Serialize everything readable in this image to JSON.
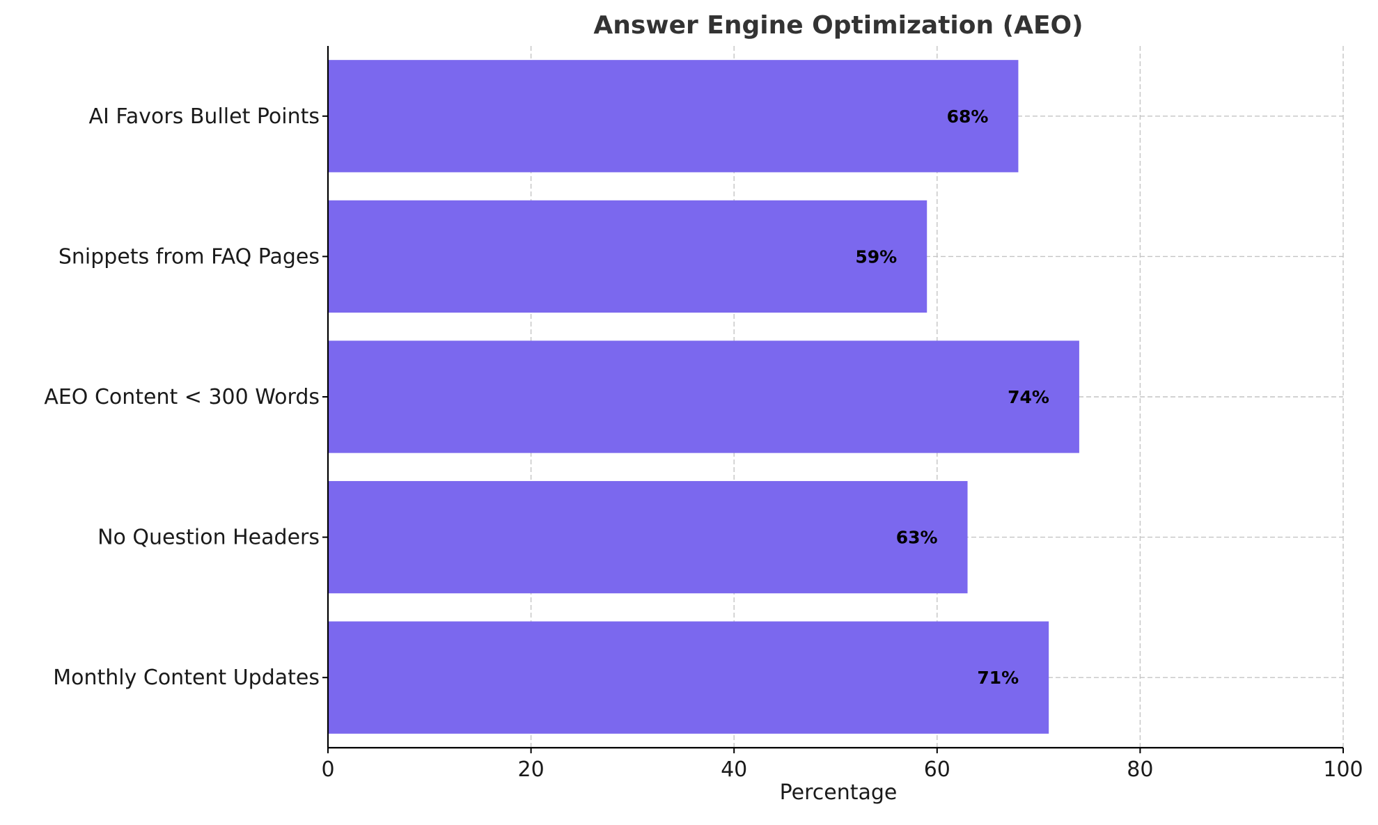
{
  "chart_data": {
    "type": "bar",
    "orientation": "horizontal",
    "title": "Answer Engine Optimization (AEO)",
    "xlabel": "Percentage",
    "ylabel": "",
    "xlim": [
      0,
      100
    ],
    "xticks": [
      0,
      20,
      40,
      60,
      80,
      100
    ],
    "grid": true,
    "categories": [
      "AI Favors Bullet Points",
      "Snippets from FAQ Pages",
      "AEO Content < 300 Words",
      "No Question Headers",
      "Monthly Content Updates"
    ],
    "values": [
      68,
      59,
      74,
      63,
      71
    ],
    "data_labels": [
      "68%",
      "59%",
      "74%",
      "63%",
      "71%"
    ],
    "bar_color": "#7B68EE"
  }
}
